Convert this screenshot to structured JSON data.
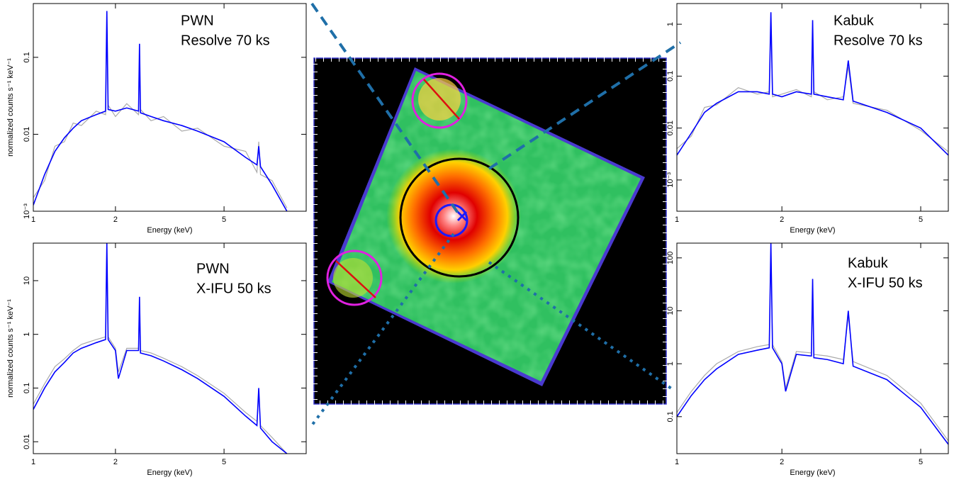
{
  "chart_data": [
    {
      "type": "line",
      "annotations": [
        "PWN",
        "Resolve 70 ks"
      ],
      "x_label": "Energy (keV)",
      "y_label": "normalized counts s⁻¹ keV⁻¹",
      "xscale": "log",
      "yscale": "log",
      "xlim": [
        1,
        10
      ],
      "ylim": [
        0.001,
        0.5
      ],
      "xticks": [
        1,
        2,
        5
      ],
      "yticks": [
        {
          "value": 0.001,
          "label": "10⁻³"
        },
        0.01,
        0.1
      ],
      "x": [
        1,
        1.1,
        1.2,
        1.3,
        1.4,
        1.5,
        1.7,
        1.84,
        1.86,
        1.88,
        2,
        2.2,
        2.43,
        2.45,
        2.47,
        2.7,
        3,
        3.5,
        4,
        5,
        6,
        6.6,
        6.7,
        6.8,
        7.5,
        8.5
      ],
      "series": [
        {
          "color": "#aaaaaa",
          "values": [
            0.0015,
            0.0025,
            0.007,
            0.008,
            0.014,
            0.013,
            0.02,
            0.018,
            0.3,
            0.024,
            0.017,
            0.025,
            0.018,
            0.12,
            0.021,
            0.015,
            0.017,
            0.011,
            0.012,
            0.007,
            0.006,
            0.0032,
            0.008,
            0.003,
            0.0025,
            0.0011
          ]
        },
        {
          "color": "#0000ff",
          "values": [
            0.0012,
            0.003,
            0.006,
            0.009,
            0.012,
            0.015,
            0.018,
            0.02,
            0.4,
            0.021,
            0.02,
            0.022,
            0.02,
            0.15,
            0.019,
            0.017,
            0.015,
            0.013,
            0.011,
            0.008,
            0.005,
            0.004,
            0.007,
            0.0038,
            0.0022,
            0.001
          ]
        }
      ]
    },
    {
      "type": "line",
      "annotations": [
        "PWN",
        "X-IFU 50 ks"
      ],
      "x_label": "Energy (keV)",
      "y_label": "normalized counts s⁻¹ keV⁻¹",
      "xscale": "log",
      "yscale": "log",
      "xlim": [
        1,
        10
      ],
      "ylim": [
        0.006,
        50
      ],
      "xticks": [
        1,
        2,
        5
      ],
      "yticks": [
        0.01,
        0.1,
        1,
        10
      ],
      "x": [
        1,
        1.1,
        1.2,
        1.3,
        1.4,
        1.5,
        1.7,
        1.84,
        1.86,
        1.88,
        2,
        2.05,
        2.2,
        2.43,
        2.45,
        2.47,
        2.7,
        3,
        3.5,
        4,
        5,
        6,
        6.6,
        6.7,
        6.8,
        7.5,
        8.5
      ],
      "series": [
        {
          "color": "#aaaaaa",
          "values": [
            0.05,
            0.12,
            0.25,
            0.35,
            0.5,
            0.65,
            0.8,
            0.9,
            40,
            0.9,
            0.55,
            0.2,
            0.55,
            0.55,
            4,
            0.5,
            0.45,
            0.36,
            0.25,
            0.17,
            0.08,
            0.035,
            0.024,
            0.08,
            0.02,
            0.012,
            0.006
          ]
        },
        {
          "color": "#0000ff",
          "values": [
            0.04,
            0.1,
            0.2,
            0.3,
            0.45,
            0.55,
            0.7,
            0.8,
            50,
            0.8,
            0.5,
            0.15,
            0.5,
            0.5,
            5,
            0.45,
            0.4,
            0.32,
            0.22,
            0.15,
            0.07,
            0.03,
            0.02,
            0.1,
            0.018,
            0.01,
            0.006
          ]
        }
      ]
    },
    {
      "type": "line",
      "annotations": [
        "Kabuk",
        "Resolve 70 ks"
      ],
      "x_label": "Energy (keV)",
      "xscale": "log",
      "yscale": "log",
      "xlim": [
        1,
        6
      ],
      "ylim": [
        0.00025,
        2.5
      ],
      "xticks": [
        1,
        2,
        5
      ],
      "yticks": [
        {
          "value": 0.001,
          "label": "10⁻³"
        },
        0.01,
        0.1,
        1
      ],
      "x": [
        1,
        1.1,
        1.2,
        1.3,
        1.5,
        1.7,
        1.84,
        1.86,
        1.88,
        2,
        2.2,
        2.43,
        2.45,
        2.47,
        2.7,
        3,
        3.1,
        3.2,
        4,
        5,
        6
      ],
      "series": [
        {
          "color": "#aaaaaa",
          "values": [
            0.004,
            0.007,
            0.025,
            0.028,
            0.06,
            0.045,
            0.05,
            1.2,
            0.04,
            0.045,
            0.055,
            0.04,
            0.9,
            0.05,
            0.035,
            0.04,
            0.15,
            0.03,
            0.022,
            0.009,
            0.0035
          ]
        },
        {
          "color": "#0000ff",
          "values": [
            0.003,
            0.008,
            0.02,
            0.03,
            0.05,
            0.05,
            0.045,
            1.7,
            0.045,
            0.04,
            0.05,
            0.045,
            1.2,
            0.045,
            0.04,
            0.035,
            0.2,
            0.033,
            0.02,
            0.01,
            0.003
          ]
        }
      ]
    },
    {
      "type": "line",
      "annotations": [
        "Kabuk",
        "X-IFU 50 ks"
      ],
      "x_label": "Energy (keV)",
      "xscale": "log",
      "yscale": "log",
      "xlim": [
        1,
        6
      ],
      "ylim": [
        0.02,
        190
      ],
      "xticks": [
        1,
        2,
        5
      ],
      "yticks": [
        0.1,
        1,
        10,
        100
      ],
      "x": [
        1,
        1.1,
        1.2,
        1.3,
        1.5,
        1.7,
        1.84,
        1.86,
        1.88,
        2,
        2.05,
        2.2,
        2.43,
        2.45,
        2.47,
        2.7,
        3,
        3.1,
        3.2,
        4,
        5,
        6
      ],
      "series": [
        {
          "color": "#aaaaaa",
          "values": [
            0.12,
            0.3,
            0.6,
            1,
            1.7,
            2.1,
            2.3,
            150,
            2.3,
            1.1,
            0.35,
            1.7,
            1.6,
            30,
            1.5,
            1.4,
            1.2,
            8,
            1.1,
            0.6,
            0.18,
            0.035
          ]
        },
        {
          "color": "#0000ff",
          "values": [
            0.1,
            0.25,
            0.5,
            0.8,
            1.5,
            1.8,
            2,
            190,
            2,
            1,
            0.3,
            1.5,
            1.4,
            40,
            1.3,
            1.2,
            1,
            10,
            0.9,
            0.5,
            0.15,
            0.03
          ]
        }
      ]
    }
  ]
}
